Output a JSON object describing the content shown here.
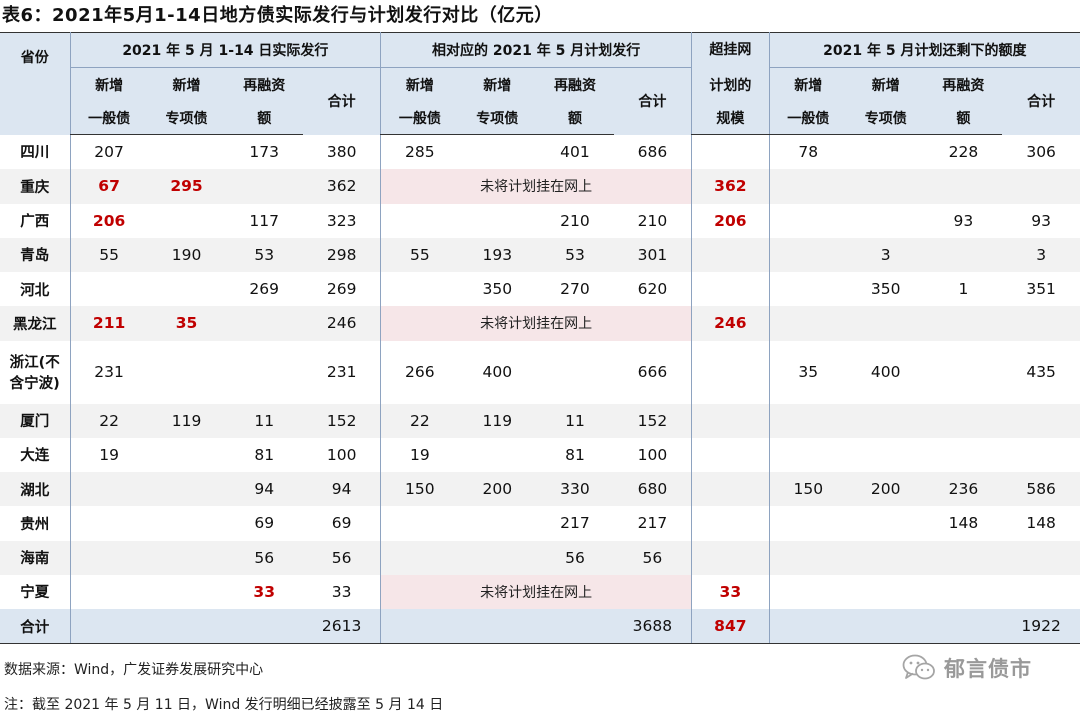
{
  "title": "表6：2021年5月1-14日地方债实际发行与计划发行对比（亿元）",
  "header": {
    "province_label": "省份",
    "groups": [
      "2021 年 5 月 1-14 日实际发行",
      "相对应的 2021 年 5 月计划发行",
      "超挂网计划的规模",
      "2021 年 5 月计划还剩下的额度"
    ],
    "overplan_lines": [
      "超挂网",
      "计划的",
      "规模"
    ],
    "sub": {
      "new_general": [
        "新增",
        "一般债"
      ],
      "new_special": [
        "新增",
        "专项债"
      ],
      "refinance": [
        "再融资",
        "额"
      ],
      "total": "合计"
    }
  },
  "pink_text": "未将计划挂在网上",
  "rows": [
    {
      "province": "四川",
      "a1": "207",
      "a2": "",
      "a3": "173",
      "a4": "380",
      "b1": "285",
      "b2": "",
      "b3": "401",
      "b4": "686",
      "over": "",
      "c1": "78",
      "c2": "",
      "c3": "228",
      "c4": "306"
    },
    {
      "province": "重庆",
      "a1": "67",
      "a2": "295",
      "a3": "",
      "a4": "362",
      "b1": "",
      "b2": "",
      "b3": "",
      "b4": "",
      "over": "362",
      "c1": "",
      "c2": "",
      "c3": "",
      "c4": ""
    },
    {
      "province": "广西",
      "a1": "206",
      "a2": "",
      "a3": "117",
      "a4": "323",
      "b1": "",
      "b2": "",
      "b3": "210",
      "b4": "210",
      "over": "206",
      "c1": "",
      "c2": "",
      "c3": "93",
      "c4": "93"
    },
    {
      "province": "青岛",
      "a1": "55",
      "a2": "190",
      "a3": "53",
      "a4": "298",
      "b1": "55",
      "b2": "193",
      "b3": "53",
      "b4": "301",
      "over": "",
      "c1": "",
      "c2": "3",
      "c3": "",
      "c4": "3"
    },
    {
      "province": "河北",
      "a1": "",
      "a2": "",
      "a3": "269",
      "a4": "269",
      "b1": "",
      "b2": "350",
      "b3": "270",
      "b4": "620",
      "over": "",
      "c1": "",
      "c2": "350",
      "c3": "1",
      "c4": "351"
    },
    {
      "province": "黑龙江",
      "a1": "211",
      "a2": "35",
      "a3": "",
      "a4": "246",
      "b1": "",
      "b2": "",
      "b3": "",
      "b4": "",
      "over": "246",
      "c1": "",
      "c2": "",
      "c3": "",
      "c4": ""
    },
    {
      "province": "浙江(不含宁波)",
      "province_lines": [
        "浙江(不",
        "含宁波)"
      ],
      "a1": "231",
      "a2": "",
      "a3": "",
      "a4": "231",
      "b1": "266",
      "b2": "400",
      "b3": "",
      "b4": "666",
      "over": "",
      "c1": "35",
      "c2": "400",
      "c3": "",
      "c4": "435"
    },
    {
      "province": "厦门",
      "a1": "22",
      "a2": "119",
      "a3": "11",
      "a4": "152",
      "b1": "22",
      "b2": "119",
      "b3": "11",
      "b4": "152",
      "over": "",
      "c1": "",
      "c2": "",
      "c3": "",
      "c4": ""
    },
    {
      "province": "大连",
      "a1": "19",
      "a2": "",
      "a3": "81",
      "a4": "100",
      "b1": "19",
      "b2": "",
      "b3": "81",
      "b4": "100",
      "over": "",
      "c1": "",
      "c2": "",
      "c3": "",
      "c4": ""
    },
    {
      "province": "湖北",
      "a1": "",
      "a2": "",
      "a3": "94",
      "a4": "94",
      "b1": "150",
      "b2": "200",
      "b3": "330",
      "b4": "680",
      "over": "",
      "c1": "150",
      "c2": "200",
      "c3": "236",
      "c4": "586"
    },
    {
      "province": "贵州",
      "a1": "",
      "a2": "",
      "a3": "69",
      "a4": "69",
      "b1": "",
      "b2": "",
      "b3": "217",
      "b4": "217",
      "over": "",
      "c1": "",
      "c2": "",
      "c3": "148",
      "c4": "148"
    },
    {
      "province": "海南",
      "a1": "",
      "a2": "",
      "a3": "56",
      "a4": "56",
      "b1": "",
      "b2": "",
      "b3": "56",
      "b4": "56",
      "over": "",
      "c1": "",
      "c2": "",
      "c3": "",
      "c4": ""
    },
    {
      "province": "宁夏",
      "a1": "",
      "a2": "",
      "a3": "33",
      "a4": "33",
      "b1": "",
      "b2": "",
      "b3": "",
      "b4": "",
      "over": "33",
      "c1": "",
      "c2": "",
      "c3": "",
      "c4": ""
    }
  ],
  "totals": {
    "label": "合计",
    "a4": "2613",
    "b4": "3688",
    "over": "847",
    "c4": "1922"
  },
  "footer": {
    "source": "数据来源：Wind，广发证券发展研究中心",
    "note": "注：截至 2021 年 5 月 11 日，Wind 发行明细已经披露至 5 月 14 日"
  },
  "watermark": {
    "icon": "wechat-icon",
    "text": "郁言债市"
  },
  "colors": {
    "header_bg": "#dce6f1",
    "alt_row_bg": "#f2f2f2",
    "highlight_red": "#c00000",
    "pink_bg": "#f6e6e8"
  }
}
